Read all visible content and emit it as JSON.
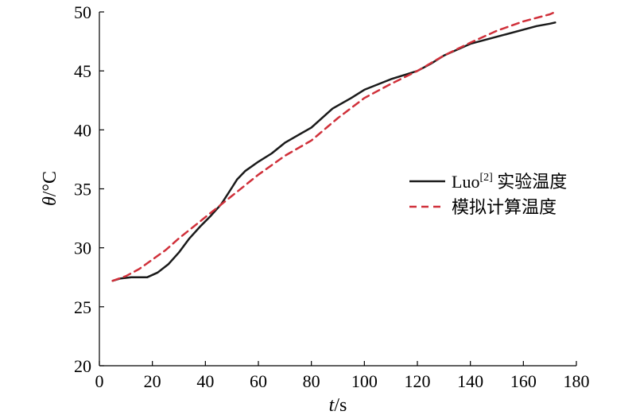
{
  "chart_data": {
    "type": "line",
    "xlabel_italic": "t",
    "xlabel_unit": "/s",
    "ylabel_italic": "θ",
    "ylabel_unit": "/°C",
    "xlim": [
      0,
      180
    ],
    "ylim": [
      20,
      50
    ],
    "x_ticks": [
      "0",
      "20",
      "40",
      "60",
      "80",
      "100",
      "120",
      "140",
      "160",
      "180"
    ],
    "y_ticks": [
      "20",
      "25",
      "30",
      "35",
      "40",
      "45",
      "50"
    ],
    "grid": false,
    "legend_position": "right",
    "series": [
      {
        "name_main": "Luo",
        "name_sup": "[2]",
        "name_rest": " 实验温度",
        "color": "#1a1a1a",
        "style": "solid",
        "points": [
          [
            5,
            27.2
          ],
          [
            8,
            27.4
          ],
          [
            12,
            27.5
          ],
          [
            18,
            27.5
          ],
          [
            22,
            27.9
          ],
          [
            26,
            28.6
          ],
          [
            30,
            29.6
          ],
          [
            34,
            30.8
          ],
          [
            38,
            31.8
          ],
          [
            42,
            32.7
          ],
          [
            46,
            33.7
          ],
          [
            50,
            35.1
          ],
          [
            52,
            35.8
          ],
          [
            55,
            36.5
          ],
          [
            60,
            37.3
          ],
          [
            65,
            38.0
          ],
          [
            70,
            38.9
          ],
          [
            80,
            40.2
          ],
          [
            88,
            41.8
          ],
          [
            95,
            42.7
          ],
          [
            100,
            43.4
          ],
          [
            110,
            44.3
          ],
          [
            120,
            45.0
          ],
          [
            125,
            45.6
          ],
          [
            130,
            46.3
          ],
          [
            140,
            47.3
          ],
          [
            150,
            47.9
          ],
          [
            160,
            48.5
          ],
          [
            165,
            48.8
          ],
          [
            170,
            49.0
          ],
          [
            172,
            49.1
          ]
        ]
      },
      {
        "name_main": "模拟计算温度",
        "name_sup": "",
        "name_rest": "",
        "color": "#d0303a",
        "style": "dashed",
        "points": [
          [
            5,
            27.2
          ],
          [
            10,
            27.6
          ],
          [
            15,
            28.2
          ],
          [
            20,
            29.0
          ],
          [
            25,
            29.8
          ],
          [
            30,
            30.8
          ],
          [
            35,
            31.7
          ],
          [
            40,
            32.6
          ],
          [
            45,
            33.5
          ],
          [
            50,
            34.4
          ],
          [
            55,
            35.3
          ],
          [
            60,
            36.2
          ],
          [
            70,
            37.8
          ],
          [
            80,
            39.1
          ],
          [
            90,
            41.0
          ],
          [
            100,
            42.7
          ],
          [
            110,
            43.9
          ],
          [
            120,
            45.0
          ],
          [
            130,
            46.3
          ],
          [
            140,
            47.4
          ],
          [
            150,
            48.4
          ],
          [
            160,
            49.2
          ],
          [
            170,
            49.8
          ],
          [
            172,
            50.0
          ]
        ]
      }
    ]
  }
}
